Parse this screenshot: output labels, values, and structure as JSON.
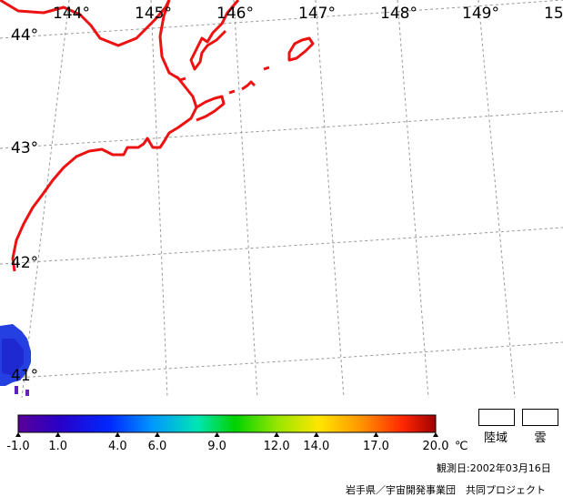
{
  "map": {
    "longitude_labels": [
      "144°",
      "145°",
      "146°",
      "147°",
      "148°",
      "149°",
      "15"
    ],
    "latitude_labels": [
      "44°",
      "43°",
      "42°",
      "41°"
    ],
    "coastline_color": "#ee1111",
    "grid_color": "#999999"
  },
  "colorbar": {
    "tick_labels": [
      "-1.0",
      "1.0",
      "4.0",
      "6.0",
      "9.0",
      "12.0",
      "14.0",
      "17.0",
      "20.0"
    ],
    "tick_values": [
      -1.0,
      1.0,
      4.0,
      6.0,
      9.0,
      12.0,
      14.0,
      17.0,
      20.0
    ],
    "range": [
      -1.0,
      20.0
    ],
    "unit": "℃",
    "colors": [
      "#5a0096",
      "#1e00c8",
      "#0050ff",
      "#00b4ff",
      "#00e6a0",
      "#00d200",
      "#b4e600",
      "#ffdc00",
      "#ff8c00",
      "#e60000",
      "#a00000"
    ]
  },
  "legend": {
    "land_label": "陸域",
    "cloud_label": "雲"
  },
  "footer": {
    "date": "観測日:2002年03月16日",
    "credit": "岩手県／宇宙開発事業団　共同プロジェクト"
  }
}
